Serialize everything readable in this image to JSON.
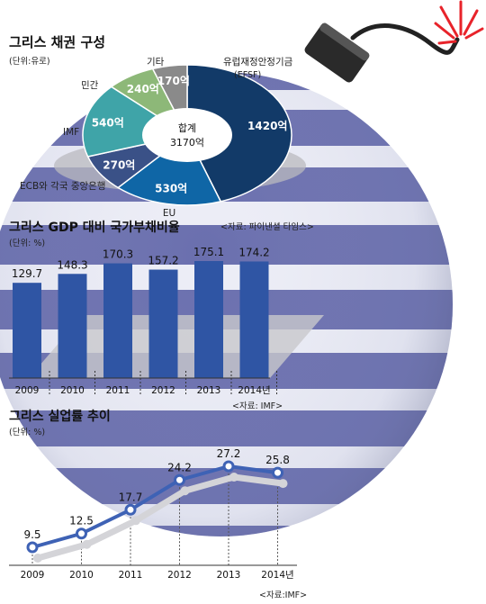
{
  "chart_data": [
    {
      "type": "pie",
      "title": "그리스 채권 구성",
      "unit_note": "(단위:유로)",
      "center_label": "합계",
      "center_value": "3170억",
      "source": "<자료: 파이낸셜 타임스>",
      "slices": [
        {
          "label": "유럽재정안정기금",
          "label2": "(EFSF)",
          "value": 1420,
          "value_text": "1420억",
          "color": "#123a68"
        },
        {
          "label": "EU",
          "value": 530,
          "value_text": "530억",
          "color": "#0f66a6"
        },
        {
          "label": "ECB와 각국 중앙은행",
          "value": 270,
          "value_text": "270억",
          "color": "#3a5187"
        },
        {
          "label": "IMF",
          "value": 540,
          "value_text": "540억",
          "color": "#3fa4a8"
        },
        {
          "label": "민간",
          "value": 240,
          "value_text": "240억",
          "color": "#8db878"
        },
        {
          "label": "기타",
          "value": 170,
          "value_text": "170억",
          "color": "#8a8a8a"
        }
      ]
    },
    {
      "type": "bar",
      "title": "그리스 GDP 대비 국가부채비율",
      "unit_note": "(단위: %)",
      "categories": [
        "2009",
        "2010",
        "2011",
        "2012",
        "2013",
        "2014년"
      ],
      "values": [
        129.7,
        148.3,
        170.3,
        157.2,
        175.1,
        174.2
      ],
      "value_labels": [
        "129.7",
        "148.3",
        "170.3",
        "157.2",
        "175.1",
        "174.2"
      ],
      "color": "#2f55a4",
      "source": "<자료: IMF>"
    },
    {
      "type": "line",
      "title": "그리스 실업률 추이",
      "unit_note": "(단위: %)",
      "categories": [
        "2009",
        "2010",
        "2011",
        "2012",
        "2013",
        "2014년"
      ],
      "values": [
        9.5,
        12.5,
        17.7,
        24.2,
        27.2,
        25.8
      ],
      "value_labels": [
        "9.5",
        "12.5",
        "17.7",
        "24.2",
        "27.2",
        "25.8"
      ],
      "color": "#3e62b5",
      "source": "<자료:IMF>"
    }
  ]
}
